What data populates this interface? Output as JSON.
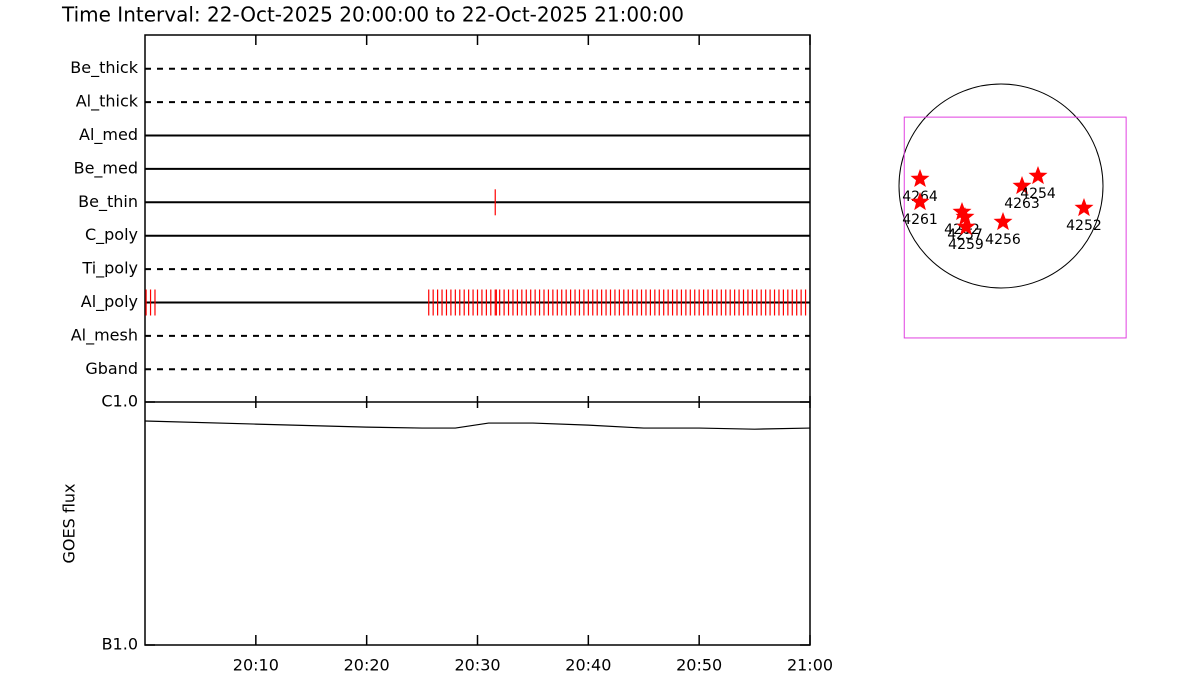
{
  "title": "Time Interval: 22-Oct-2025 20:00:00 to 22-Oct-2025 21:00:00",
  "time_axis": {
    "xlim": [
      0,
      60
    ],
    "xticks": [
      {
        "value": 10,
        "label": "20:10"
      },
      {
        "value": 20,
        "label": "20:20"
      },
      {
        "value": 30,
        "label": "20:30"
      },
      {
        "value": 40,
        "label": "20:40"
      },
      {
        "value": 50,
        "label": "20:50"
      },
      {
        "value": 60,
        "label": "21:00"
      }
    ]
  },
  "event_color": "#ff0000",
  "filters": [
    {
      "name": "Be_thick",
      "style": "dashed",
      "events": []
    },
    {
      "name": "Al_thick",
      "style": "dashed",
      "events": []
    },
    {
      "name": "Al_med",
      "style": "solid",
      "events": []
    },
    {
      "name": "Be_med",
      "style": "solid",
      "events": []
    },
    {
      "name": "Be_thin",
      "style": "solid",
      "events": [
        31.6
      ]
    },
    {
      "name": "C_poly",
      "style": "solid",
      "events": []
    },
    {
      "name": "Ti_poly",
      "style": "dashed",
      "events": []
    },
    {
      "name": "Al_poly",
      "style": "solid",
      "events": [
        0.1,
        0.5,
        0.9,
        25.6,
        26,
        26.4,
        26.8,
        27.2,
        27.6,
        28,
        28.4,
        28.8,
        29.2,
        29.6,
        30,
        30.4,
        30.8,
        31.2,
        31.6,
        31.7,
        32,
        32.4,
        32.8,
        33.2,
        33.6,
        34,
        34.4,
        34.8,
        35.2,
        35.6,
        36,
        36.4,
        36.8,
        37.2,
        37.6,
        38,
        38.4,
        38.8,
        39.2,
        39.6,
        40,
        40.4,
        40.8,
        41.2,
        41.6,
        42,
        42.4,
        42.8,
        43.2,
        43.6,
        44,
        44.4,
        44.8,
        45.2,
        45.6,
        46,
        46.4,
        46.8,
        47.2,
        47.6,
        48,
        48.4,
        48.8,
        49.2,
        49.6,
        50,
        50.4,
        50.8,
        51.2,
        51.6,
        52,
        52.4,
        52.8,
        53.2,
        53.6,
        54,
        54.4,
        54.8,
        55.2,
        55.6,
        56,
        56.4,
        56.8,
        57.2,
        57.6,
        58,
        58.4,
        58.8,
        59.2,
        59.6
      ]
    },
    {
      "name": "Al_mesh",
      "style": "dashed",
      "events": []
    },
    {
      "name": "Gband",
      "style": "dashed",
      "events": []
    }
  ],
  "goes": {
    "ylabel": "GOES flux",
    "log": true,
    "ylim": [
      1e-07,
      1e-06
    ],
    "yticks": [
      {
        "value": 1e-07,
        "label": "B1.0"
      },
      {
        "value": 1e-06,
        "label": "C1.0"
      }
    ],
    "color": "#000000",
    "x": [
      0,
      10,
      20,
      25,
      28,
      31,
      35,
      40,
      45,
      50,
      55,
      60
    ],
    "values": [
      8.35e-07,
      8.11e-07,
      7.88e-07,
      7.81e-07,
      7.81e-07,
      8.19e-07,
      8.19e-07,
      8.03e-07,
      7.81e-07,
      7.81e-07,
      7.73e-07,
      7.81e-07
    ]
  },
  "map": {
    "sun_radius": 970,
    "fov": {
      "xlim": [
        -920,
        1190
      ],
      "ylim": [
        -1445,
        655
      ]
    },
    "fov_color": "#e040e0",
    "star_color": "#ff0000",
    "regions": [
      {
        "name": "4264",
        "x": -770,
        "y": 67
      },
      {
        "name": "4261",
        "x": -770,
        "y": -152
      },
      {
        "name": "4262",
        "x": -371,
        "y": -247
      },
      {
        "name": "4257",
        "x": -342,
        "y": -295
      },
      {
        "name": "4259",
        "x": -333,
        "y": -390
      },
      {
        "name": "4256",
        "x": 19,
        "y": -342
      },
      {
        "name": "4263",
        "x": 200,
        "y": 0
      },
      {
        "name": "4254",
        "x": 352,
        "y": 95
      },
      {
        "name": "4252",
        "x": 789,
        "y": -209
      }
    ]
  }
}
